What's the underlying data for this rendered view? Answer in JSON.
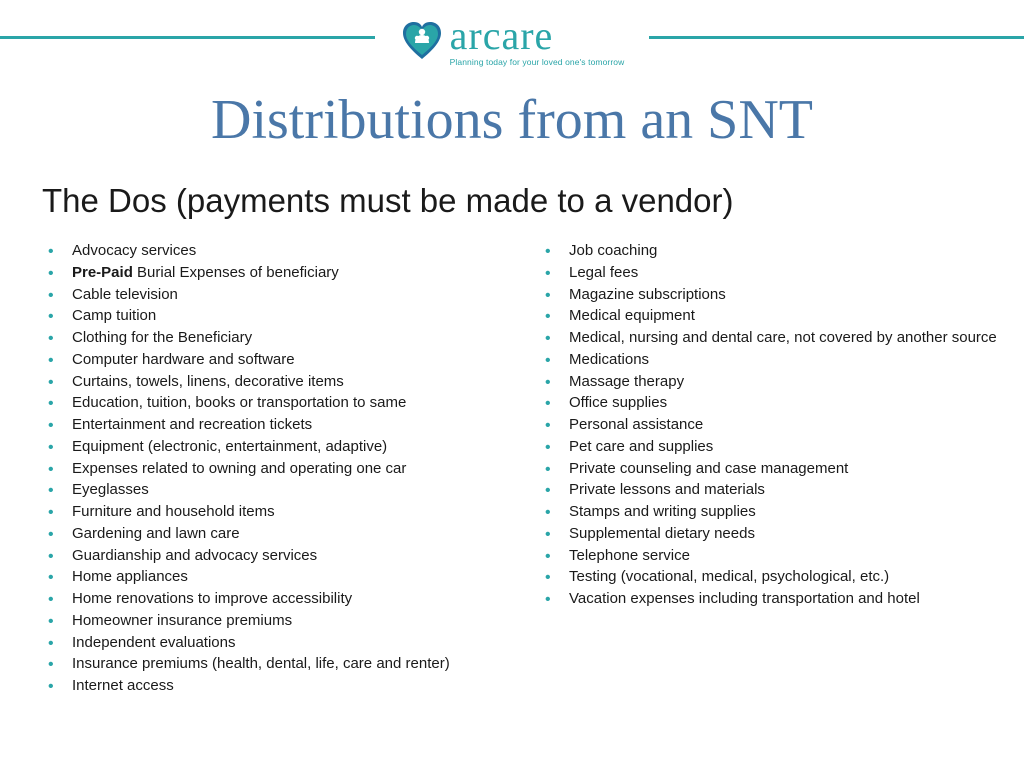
{
  "colors": {
    "teal": "#2aa5a8",
    "title_blue": "#4a77a8",
    "text": "#1a1a1a",
    "bg": "#ffffff"
  },
  "logo": {
    "word": "arcare",
    "tagline": "Planning today for your loved one's tomorrow"
  },
  "title": "Distributions from an SNT",
  "subtitle": "The Dos (payments must be made to a vendor)",
  "left_items": [
    {
      "text": "Advocacy services"
    },
    {
      "bold_prefix": "Pre-Paid",
      "rest": " Burial Expenses of beneficiary"
    },
    {
      "text": "Cable television"
    },
    {
      "text": "Camp tuition"
    },
    {
      "text": "Clothing for the Beneficiary"
    },
    {
      "text": "Computer hardware and software"
    },
    {
      "text": "Curtains, towels, linens, decorative items"
    },
    {
      "text": "Education, tuition, books or transportation to same"
    },
    {
      "text": "Entertainment and recreation tickets"
    },
    {
      "text": "Equipment (electronic, entertainment, adaptive)"
    },
    {
      "text": "Expenses related to owning and operating one car"
    },
    {
      "text": "Eyeglasses"
    },
    {
      "text": "Furniture and household items"
    },
    {
      "text": "Gardening and lawn care"
    },
    {
      "text": "Guardianship and advocacy services"
    },
    {
      "text": "Home appliances"
    },
    {
      "text": "Home renovations to improve accessibility"
    },
    {
      "text": "Homeowner insurance premiums"
    },
    {
      "text": "Independent evaluations"
    },
    {
      "text": "Insurance premiums (health, dental, life, care and renter)"
    },
    {
      "text": "Internet access"
    }
  ],
  "right_items": [
    {
      "text": "Job coaching"
    },
    {
      "text": "Legal fees"
    },
    {
      "text": "Magazine subscriptions"
    },
    {
      "text": "Medical equipment"
    },
    {
      "text": "Medical, nursing and dental care, not covered by another source"
    },
    {
      "text": "Medications"
    },
    {
      "text": "Massage therapy"
    },
    {
      "text": "Office supplies"
    },
    {
      "text": "Personal assistance"
    },
    {
      "text": "Pet care and supplies"
    },
    {
      "text": "Private counseling and case management"
    },
    {
      "text": "Private lessons and materials"
    },
    {
      "text": "Stamps and writing supplies"
    },
    {
      "text": "Supplemental dietary needs"
    },
    {
      "text": "Telephone service"
    },
    {
      "text": "Testing (vocational, medical, psychological, etc.)"
    },
    {
      "text": "Vacation expenses including transportation and hotel"
    }
  ]
}
